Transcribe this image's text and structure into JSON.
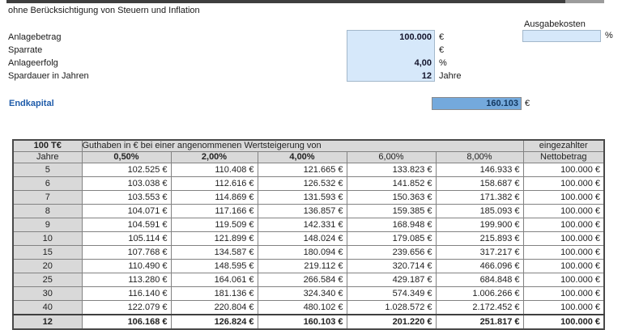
{
  "header": {
    "subtitle": "ohne Berücksichtigung von Steuern und Inflation"
  },
  "inputs": {
    "rows": [
      {
        "label": "Anlagebetrag",
        "value": "100.000",
        "unit": "€"
      },
      {
        "label": "Sparrate",
        "value": "",
        "unit": "€"
      },
      {
        "label": "Anlageerfolg",
        "value": "4,00",
        "unit": "%"
      },
      {
        "label": "Spardauer in Jahren",
        "value": "12",
        "unit": "Jahre"
      }
    ],
    "ausgabekosten": {
      "label": "Ausgabekosten",
      "value": "",
      "unit": "%"
    }
  },
  "result": {
    "label": "Endkapital",
    "value": "160.103",
    "unit": "€"
  },
  "table": {
    "corner": "100 T€",
    "span_header": "Guthaben in € bei einer angenommenen Wertsteigerung von",
    "right_header": "eingezahlter",
    "col_headers": [
      "Jahre",
      "0,50%",
      "2,00%",
      "4,00%",
      "6,00%",
      "8,00%",
      "Nettobetrag"
    ],
    "rows": [
      [
        "5",
        "102.525 €",
        "110.408 €",
        "121.665 €",
        "133.823 €",
        "146.933 €",
        "100.000 €"
      ],
      [
        "6",
        "103.038 €",
        "112.616 €",
        "126.532 €",
        "141.852 €",
        "158.687 €",
        "100.000 €"
      ],
      [
        "7",
        "103.553 €",
        "114.869 €",
        "131.593 €",
        "150.363 €",
        "171.382 €",
        "100.000 €"
      ],
      [
        "8",
        "104.071 €",
        "117.166 €",
        "136.857 €",
        "159.385 €",
        "185.093 €",
        "100.000 €"
      ],
      [
        "9",
        "104.591 €",
        "119.509 €",
        "142.331 €",
        "168.948 €",
        "199.900 €",
        "100.000 €"
      ],
      [
        "10",
        "105.114 €",
        "121.899 €",
        "148.024 €",
        "179.085 €",
        "215.893 €",
        "100.000 €"
      ],
      [
        "15",
        "107.768 €",
        "134.587 €",
        "180.094 €",
        "239.656 €",
        "317.217 €",
        "100.000 €"
      ],
      [
        "20",
        "110.490 €",
        "148.595 €",
        "219.112 €",
        "320.714 €",
        "466.096 €",
        "100.000 €"
      ],
      [
        "25",
        "113.280 €",
        "164.061 €",
        "266.584 €",
        "429.187 €",
        "684.848 €",
        "100.000 €"
      ],
      [
        "30",
        "116.140 €",
        "181.136 €",
        "324.340 €",
        "574.349 €",
        "1.006.266 €",
        "100.000 €"
      ],
      [
        "40",
        "122.079 €",
        "220.804 €",
        "480.102 €",
        "1.028.572 €",
        "2.172.452 €",
        "100.000 €"
      ],
      [
        "12",
        "106.168 €",
        "126.824 €",
        "160.103 €",
        "201.220 €",
        "251.817 €",
        "100.000 €"
      ]
    ]
  },
  "colors": {
    "input_fill": "#d6e8fa",
    "result_fill": "#74a9dc",
    "table_header_fill": "#d9d9d9",
    "result_label_blue": "#1f5caa",
    "top_bar_dark": "#3f3f3f"
  }
}
